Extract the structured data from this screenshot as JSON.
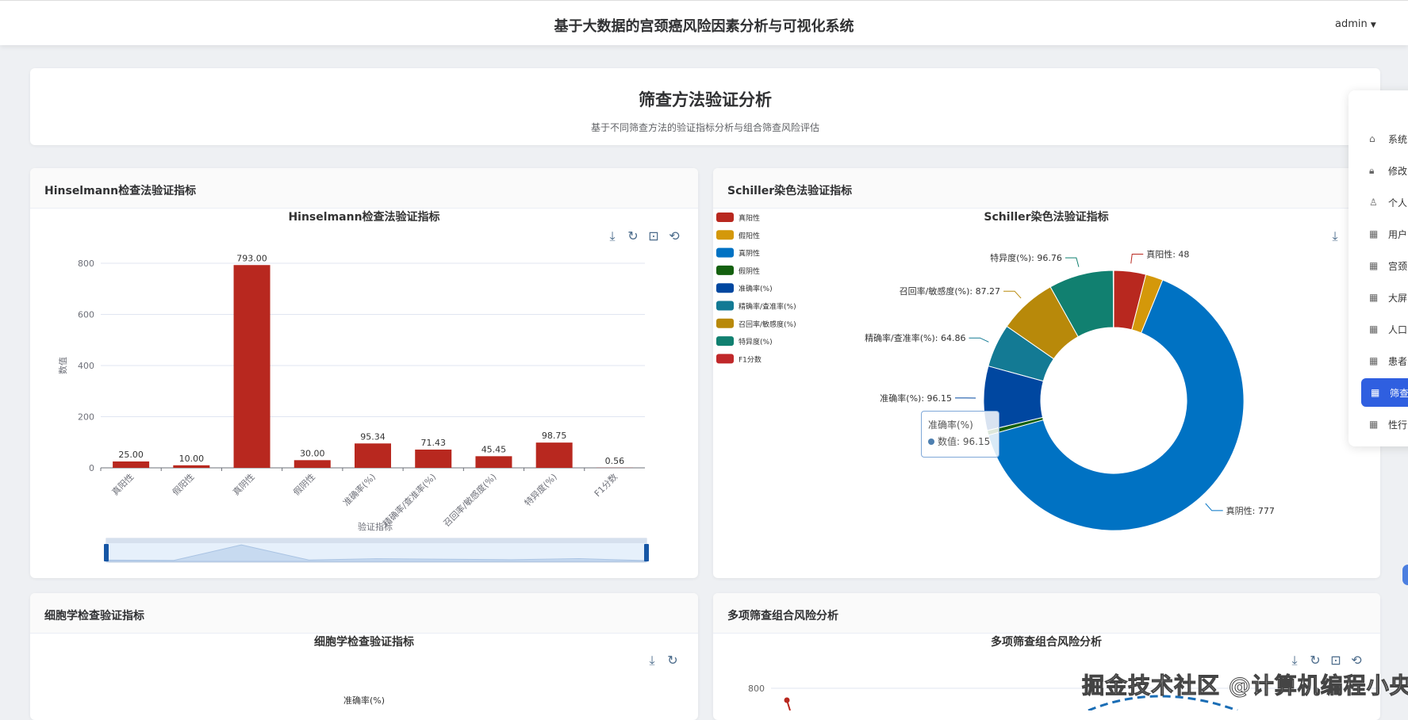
{
  "header": {
    "title": "基于大数据的宫颈癌风险因素分析与可视化系统",
    "user": "admin",
    "user_caret": "▼"
  },
  "intro": {
    "title": "筛查方法验证分析",
    "subtitle": "基于不同筛查方法的验证指标分析与组合筛查风险评估"
  },
  "sidebar": {
    "items": [
      {
        "label": "系统",
        "icon": "home-icon"
      },
      {
        "label": "修改",
        "icon": "lock-icon"
      },
      {
        "label": "个人",
        "icon": "user-icon"
      },
      {
        "label": "用户",
        "icon": "grid-icon"
      },
      {
        "label": "宫颈",
        "icon": "grid-icon"
      },
      {
        "label": "大屏",
        "icon": "grid-icon"
      },
      {
        "label": "人口",
        "icon": "grid-icon"
      },
      {
        "label": "患者",
        "icon": "grid-icon"
      },
      {
        "label": "筛查",
        "icon": "grid-icon",
        "active": true
      },
      {
        "label": "性行",
        "icon": "grid-icon"
      }
    ]
  },
  "cards": {
    "hinselmann": {
      "header": "Hinselmann检查法验证指标"
    },
    "schiller": {
      "header": "Schiller染色法验证指标"
    },
    "cytology": {
      "header": "细胞学检查验证指标",
      "chart_title": "细胞学检查验证指标",
      "visible_label": "准确率(%)"
    },
    "combo": {
      "header": "多项筛查组合风险分析",
      "chart_title": "多项筛查组合风险分析",
      "y_tick": "800"
    }
  },
  "tooltip": {
    "title": "准确率(%)",
    "label": "数值: 96.15"
  },
  "watermark": "掘金技术社区 @计算机编程小央姐",
  "colors": {
    "accent": "#2f5fe0",
    "bar": "#b8281f"
  },
  "chart_data": [
    {
      "type": "bar",
      "title": "Hinselmann检查法验证指标",
      "xlabel": "验证指标",
      "ylabel": "数值",
      "ylim": [
        0,
        800
      ],
      "yticks": [
        0,
        200,
        400,
        600,
        800
      ],
      "grid": true,
      "categories": [
        "真阳性",
        "假阳性",
        "真阴性",
        "假阴性",
        "准确率(%)",
        "精确率/查准率(%)",
        "召回率/敏感度(%)",
        "特异度(%)",
        "F1分数"
      ],
      "values": [
        25.0,
        10.0,
        793.0,
        30.0,
        95.34,
        71.43,
        45.45,
        98.75,
        0.56
      ],
      "labels": [
        "25.00",
        "10.00",
        "793.00",
        "30.00",
        "95.34",
        "71.43",
        "45.45",
        "98.75",
        "0.56"
      ],
      "color": "#b8281f",
      "datazoom": true
    },
    {
      "type": "pie",
      "title": "Schiller染色法验证指标",
      "legend": "top-left",
      "donut": true,
      "categories": [
        "真阳性",
        "假阳性",
        "真阴性",
        "假阴性",
        "准确率(%)",
        "精确率/查准率(%)",
        "召回率/敏感度(%)",
        "特异度(%)",
        "F1分数"
      ],
      "values": [
        48,
        26,
        777,
        7,
        96.15,
        64.86,
        87.27,
        96.76,
        0.7
      ],
      "colors": [
        "#b8281f",
        "#d4980a",
        "#0072c3",
        "#14600f",
        "#0047a0",
        "#137a94",
        "#b8890a",
        "#118070",
        "#c0282a"
      ],
      "labels": [
        "真阳性: 48",
        "",
        "真阴性: 777",
        "",
        "准确率(%): 96.15",
        "精确率/查准率(%): 64.86",
        "召回率/敏感度(%): 87.27",
        "特异度(%): 96.76",
        ""
      ]
    }
  ]
}
